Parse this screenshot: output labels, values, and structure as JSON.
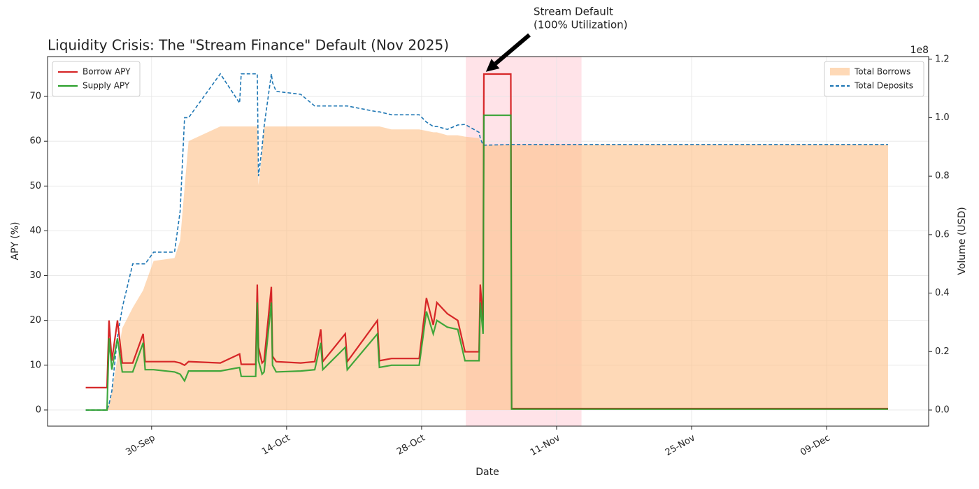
{
  "chart_data": {
    "type": "line",
    "title": "Liquidity Crisis: The \"Stream Finance\" Default (Nov 2025)",
    "x_label": "Date",
    "y_label": "APY (%)",
    "y2_label": "Volume (USD)",
    "y2_offset_label": "1e8",
    "x": [
      "09-23 04:00",
      "09-25 09:00",
      "09-25 14:00",
      "09-25 21:00",
      "09-26 11:00",
      "09-26 23:00",
      "09-28 01:00",
      "09-29 03:00",
      "09-29 08:00",
      "09-30 05:00",
      "10-02 09:00",
      "10-02 23:00",
      "10-03 10:00",
      "10-03 20:00",
      "10-07 03:00",
      "10-09 03:00",
      "10-09 07:00",
      "10-10 19:00",
      "10-10 23:00",
      "10-11 02:00",
      "10-11 11:00",
      "10-11 16:00",
      "10-12 10:00",
      "10-12 13:00",
      "10-12 22:00",
      "10-15 11:00",
      "10-16 22:00",
      "10-17 13:00",
      "10-17 18:00",
      "10-20 02:00",
      "10-20 07:00",
      "10-23 10:00",
      "10-23 15:00",
      "10-24 21:00",
      "10-27 18:00",
      "10-28 12:00",
      "10-29 05:00",
      "10-29 14:00",
      "10-30 16:00",
      "10-31 18:00",
      "11-01 12:00",
      "11-02 23:00",
      "11-03 02:00",
      "11-03 09:00",
      "11-03 11:00",
      "11-06 06:00",
      "11-06 08:00",
      "12-15 09:00"
    ],
    "series": [
      {
        "name": "Total Borrows",
        "color": "#fdbf87",
        "kind": "area",
        "axis": "y2",
        "values": [
          0,
          0,
          2000000,
          6000000,
          18000000,
          28000000,
          35000000,
          41000000,
          43000000,
          51000000,
          52000000,
          58000000,
          76000000,
          92000000,
          97000000,
          97000000,
          97000000,
          97000000,
          97000000,
          77000000,
          88000000,
          97000000,
          97000000,
          97000000,
          97000000,
          97000000,
          97000000,
          97000000,
          97000000,
          97000000,
          97000000,
          97000000,
          97000000,
          96000000,
          96000000,
          95500000,
          95000000,
          95000000,
          94000000,
          94000000,
          93500000,
          93000000,
          92000000,
          90600000,
          90600000,
          90800000,
          90800000,
          90800000
        ]
      },
      {
        "name": "Total Deposits",
        "color": "#1f77b4",
        "kind": "line",
        "dashed": true,
        "axis": "y2",
        "values": [
          0,
          0,
          2000000,
          6500000,
          25000000,
          35000000,
          50000000,
          50000000,
          50000000,
          54000000,
          54000000,
          68000000,
          100000000,
          100000000,
          115000000,
          105000000,
          115000000,
          115000000,
          115000000,
          80000000,
          90000000,
          97000000,
          115000000,
          112000000,
          109000000,
          108000000,
          104000000,
          104000000,
          104000000,
          104000000,
          104000000,
          102000000,
          102000000,
          101000000,
          101000000,
          98500000,
          97000000,
          97000000,
          96000000,
          97500000,
          97700000,
          95000000,
          93000000,
          90600000,
          90600000,
          90800000,
          90800000,
          90800000
        ]
      },
      {
        "name": "Borrow APY",
        "color": "#d62728",
        "kind": "line",
        "axis": "y",
        "values": [
          5,
          5,
          20,
          11,
          20,
          10.5,
          10.5,
          17,
          10.8,
          10.8,
          10.8,
          10.5,
          10,
          10.8,
          10.5,
          12.5,
          10.2,
          10.2,
          28,
          14,
          10.5,
          11,
          27.5,
          12,
          10.8,
          10.5,
          10.8,
          18,
          10.8,
          17,
          10.8,
          20,
          11,
          11.5,
          11.5,
          25,
          19,
          24,
          21.5,
          20,
          13,
          13,
          28,
          20,
          75,
          75,
          0.3,
          0.3
        ]
      },
      {
        "name": "Supply APY",
        "color": "#2ca02c",
        "kind": "line",
        "axis": "y",
        "values": [
          0,
          0,
          16,
          9,
          16,
          8.5,
          8.5,
          15,
          9,
          9,
          8.5,
          8,
          6.5,
          8.7,
          8.7,
          9.5,
          7.5,
          7.5,
          24,
          11,
          8,
          8.5,
          24,
          10,
          8.5,
          8.7,
          9,
          15,
          9,
          14,
          9,
          17,
          9.5,
          10,
          10,
          22,
          17,
          20,
          18.5,
          18,
          11,
          11,
          24,
          17,
          65.8,
          65.8,
          0.2,
          0.2
        ]
      }
    ],
    "xlim": [
      "09-19 05:00",
      "12-19 14:00"
    ],
    "xticks": [
      {
        "value": "09-30 00:00",
        "label": "30-Sep"
      },
      {
        "value": "10-14 00:00",
        "label": "14-Oct"
      },
      {
        "value": "10-28 00:00",
        "label": "28-Oct"
      },
      {
        "value": "11-11 00:00",
        "label": "11-Nov"
      },
      {
        "value": "11-25 00:00",
        "label": "25-Nov"
      },
      {
        "value": "12-09 00:00",
        "label": "09-Dec"
      }
    ],
    "ylim": [
      -3.6,
      78.9
    ],
    "yticks": [
      0,
      10,
      20,
      30,
      40,
      50,
      60,
      70
    ],
    "y2lim": [
      -5500000,
      120900000
    ],
    "y2ticks": [
      {
        "value": 0,
        "label": "0.0"
      },
      {
        "value": 20000000,
        "label": "0.2"
      },
      {
        "value": 40000000,
        "label": "0.4"
      },
      {
        "value": 60000000,
        "label": "0.6"
      },
      {
        "value": 80000000,
        "label": "0.8"
      },
      {
        "value": 100000000,
        "label": "1.0"
      },
      {
        "value": 120000000,
        "label": "1.2"
      }
    ],
    "grid": true,
    "legend": "upper left",
    "legend2": "upper right",
    "highlight_span": {
      "range": [
        "11-01 14:00",
        "11-13 14:00"
      ],
      "color": "#ffc0cb"
    },
    "annotation": {
      "text": [
        "Stream Default",
        "(100% Utilization)"
      ],
      "xy": [
        "11-03 16:00",
        75.5
      ]
    }
  }
}
